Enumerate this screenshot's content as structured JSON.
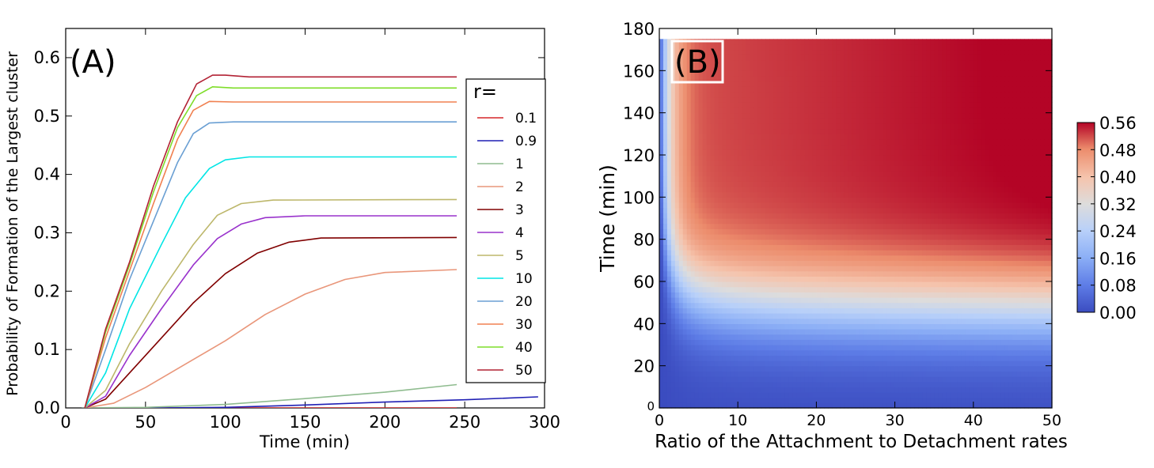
{
  "chart_data": [
    {
      "type": "line",
      "panel_label": "(A)",
      "xlabel": "Time (min)",
      "ylabel": "Probability of Formation of the Largest cluster",
      "xlim": [
        0,
        300
      ],
      "ylim": [
        0,
        0.65
      ],
      "x_ticks": [
        "0",
        "50",
        "100",
        "150",
        "200",
        "250",
        "300"
      ],
      "y_ticks": [
        "0.0",
        "0.1",
        "0.2",
        "0.3",
        "0.4",
        "0.5",
        "0.6"
      ],
      "legend_title": "r=",
      "legend_position": "right",
      "series": [
        {
          "name": "0.1",
          "color": "#d62728",
          "points": [
            [
              10,
              0
            ],
            [
              50,
              0
            ],
            [
              100,
              0
            ],
            [
              150,
              0
            ],
            [
              245,
              0
            ]
          ]
        },
        {
          "name": "0.9",
          "color": "#1f1fb4",
          "points": [
            [
              10,
              0
            ],
            [
              60,
              0
            ],
            [
              100,
              0.001
            ],
            [
              150,
              0.005
            ],
            [
              200,
              0.01
            ],
            [
              250,
              0.014
            ],
            [
              296,
              0.019
            ]
          ]
        },
        {
          "name": "1",
          "color": "#8fbc8f",
          "points": [
            [
              10,
              0
            ],
            [
              50,
              0.001
            ],
            [
              100,
              0.006
            ],
            [
              150,
              0.016
            ],
            [
              200,
              0.027
            ],
            [
              245,
              0.04
            ]
          ]
        },
        {
          "name": "2",
          "color": "#e9967a",
          "points": [
            [
              12,
              0
            ],
            [
              30,
              0.008
            ],
            [
              50,
              0.035
            ],
            [
              75,
              0.075
            ],
            [
              100,
              0.115
            ],
            [
              125,
              0.16
            ],
            [
              150,
              0.195
            ],
            [
              175,
              0.22
            ],
            [
              200,
              0.232
            ],
            [
              245,
              0.237
            ]
          ]
        },
        {
          "name": "3",
          "color": "#800000",
          "points": [
            [
              12,
              0
            ],
            [
              25,
              0.015
            ],
            [
              40,
              0.06
            ],
            [
              60,
              0.12
            ],
            [
              80,
              0.18
            ],
            [
              100,
              0.23
            ],
            [
              120,
              0.265
            ],
            [
              140,
              0.284
            ],
            [
              160,
              0.291
            ],
            [
              245,
              0.292
            ]
          ]
        },
        {
          "name": "4",
          "color": "#9932cc",
          "points": [
            [
              12,
              0
            ],
            [
              25,
              0.02
            ],
            [
              40,
              0.09
            ],
            [
              60,
              0.17
            ],
            [
              80,
              0.245
            ],
            [
              95,
              0.29
            ],
            [
              110,
              0.315
            ],
            [
              125,
              0.326
            ],
            [
              150,
              0.329
            ],
            [
              245,
              0.329
            ]
          ]
        },
        {
          "name": "5",
          "color": "#bdb76b",
          "points": [
            [
              12,
              0
            ],
            [
              25,
              0.03
            ],
            [
              40,
              0.11
            ],
            [
              60,
              0.2
            ],
            [
              80,
              0.28
            ],
            [
              95,
              0.33
            ],
            [
              110,
              0.35
            ],
            [
              130,
              0.356
            ],
            [
              245,
              0.357
            ]
          ]
        },
        {
          "name": "10",
          "color": "#00e5e5",
          "points": [
            [
              12,
              0
            ],
            [
              25,
              0.06
            ],
            [
              40,
              0.17
            ],
            [
              60,
              0.28
            ],
            [
              75,
              0.36
            ],
            [
              90,
              0.41
            ],
            [
              100,
              0.425
            ],
            [
              115,
              0.43
            ],
            [
              245,
              0.43
            ]
          ]
        },
        {
          "name": "20",
          "color": "#6a9fd3",
          "points": [
            [
              12,
              0
            ],
            [
              25,
              0.1
            ],
            [
              40,
              0.22
            ],
            [
              55,
              0.32
            ],
            [
              70,
              0.42
            ],
            [
              80,
              0.47
            ],
            [
              90,
              0.488
            ],
            [
              105,
              0.49
            ],
            [
              245,
              0.49
            ]
          ]
        },
        {
          "name": "30",
          "color": "#f08050",
          "points": [
            [
              12,
              0
            ],
            [
              25,
              0.12
            ],
            [
              40,
              0.235
            ],
            [
              55,
              0.35
            ],
            [
              70,
              0.46
            ],
            [
              80,
              0.51
            ],
            [
              90,
              0.525
            ],
            [
              105,
              0.524
            ],
            [
              245,
              0.524
            ]
          ]
        },
        {
          "name": "40",
          "color": "#7fdd2a",
          "points": [
            [
              12,
              0
            ],
            [
              25,
              0.13
            ],
            [
              40,
              0.245
            ],
            [
              55,
              0.37
            ],
            [
              70,
              0.48
            ],
            [
              82,
              0.535
            ],
            [
              92,
              0.55
            ],
            [
              105,
              0.548
            ],
            [
              245,
              0.548
            ]
          ]
        },
        {
          "name": "50",
          "color": "#b22234",
          "points": [
            [
              12,
              0
            ],
            [
              25,
              0.135
            ],
            [
              40,
              0.25
            ],
            [
              55,
              0.38
            ],
            [
              70,
              0.49
            ],
            [
              82,
              0.555
            ],
            [
              92,
              0.57
            ],
            [
              100,
              0.57
            ],
            [
              115,
              0.567
            ],
            [
              245,
              0.567
            ]
          ]
        }
      ]
    },
    {
      "type": "heatmap",
      "panel_label": "(B)",
      "xlabel": "Ratio of the Attachment to Detachment rates",
      "ylabel": "Time (min)",
      "xlim": [
        0,
        50
      ],
      "ylim": [
        0,
        180
      ],
      "x_ticks": [
        "0",
        "10",
        "20",
        "30",
        "40",
        "50"
      ],
      "y_ticks": [
        "0",
        "20",
        "40",
        "60",
        "80",
        "100",
        "120",
        "140",
        "160",
        "180"
      ],
      "data_extent": {
        "x": [
          0,
          50
        ],
        "y": [
          0,
          175
        ]
      },
      "colormap": "coolwarm",
      "colorbar_ticks": [
        "0.00",
        "0.08",
        "0.16",
        "0.24",
        "0.32",
        "0.40",
        "0.48",
        "0.56"
      ],
      "colorbar_range": [
        0,
        0.56
      ]
    }
  ]
}
